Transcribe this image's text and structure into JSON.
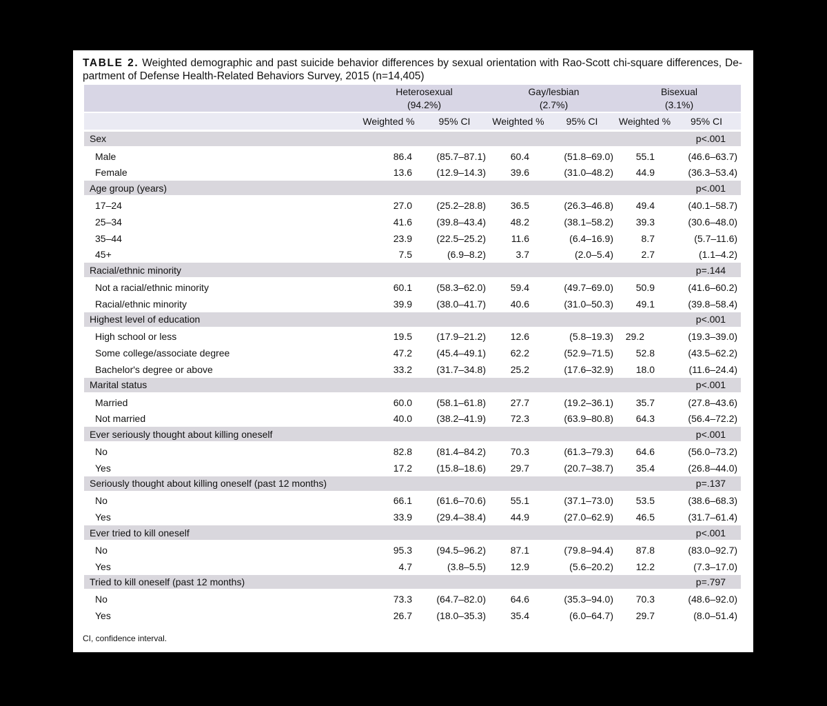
{
  "page": {
    "title_label": "TABLE 2.",
    "title_line1_rest": "Weighted demographic and past suicide behavior differences by sexual orientation with Rao-Scott chi-square differences, De-",
    "title_line2": "partment of Defense Health-Related Behaviors Survey, 2015 (n=14,405)",
    "footnote": "CI, confidence interval."
  },
  "table": {
    "groups": [
      {
        "name": "Heterosexual",
        "pct": "(94.2%)"
      },
      {
        "name": "Gay/lesbian",
        "pct": "(2.7%)"
      },
      {
        "name": "Bisexual",
        "pct": "(3.1%)"
      }
    ],
    "subheaders": [
      "Weighted %",
      "95% CI",
      "Weighted %",
      "95% CI",
      "Weighted %",
      "95% CI"
    ],
    "sections": [
      {
        "label": "Sex",
        "p": "p<.001",
        "rows": [
          {
            "label": "Male",
            "values": [
              "86.4",
              "(85.7–87.1)",
              "60.4",
              "(51.8–69.0)",
              "55.1",
              "(46.6–63.7)"
            ]
          },
          {
            "label": "Female",
            "values": [
              "13.6",
              "(12.9–14.3)",
              "39.6",
              "(31.0–48.2)",
              "44.9",
              "(36.3–53.4)"
            ]
          }
        ]
      },
      {
        "label": "Age group (years)",
        "p": "p<.001",
        "rows": [
          {
            "label": "17–24",
            "values": [
              "27.0",
              "(25.2–28.8)",
              "36.5",
              "(26.3–46.8)",
              "49.4",
              "(40.1–58.7)"
            ]
          },
          {
            "label": "25–34",
            "values": [
              "41.6",
              "(39.8–43.4)",
              "48.2",
              "(38.1–58.2)",
              "39.3",
              "(30.6–48.0)"
            ]
          },
          {
            "label": "35–44",
            "values": [
              "23.9",
              "(22.5–25.2)",
              "11.6",
              "(6.4–16.9)",
              "8.7",
              "(5.7–11.6)"
            ]
          },
          {
            "label": "45+",
            "values": [
              "7.5",
              "(6.9–8.2)",
              "3.7",
              "(2.0–5.4)",
              "2.7",
              "(1.1–4.2)"
            ]
          }
        ]
      },
      {
        "label": "Racial/ethnic minority",
        "p": "p=.144",
        "rows": [
          {
            "label": "Not a racial/ethnic minority",
            "values": [
              "60.1",
              "(58.3–62.0)",
              "59.4",
              "(49.7–69.0)",
              "50.9",
              "(41.6–60.2)"
            ]
          },
          {
            "label": "Racial/ethnic minority",
            "values": [
              "39.9",
              "(38.0–41.7)",
              "40.6",
              "(31.0–50.3)",
              "49.1",
              "(39.8–58.4)"
            ]
          }
        ]
      },
      {
        "label": "Highest level of education",
        "p": "p<.001",
        "rows": [
          {
            "label": "High school or less",
            "nudge6": true,
            "values": [
              "19.5",
              "(17.9–21.2)",
              "12.6",
              "(5.8–19.3)",
              "29.2",
              "(19.3–39.0)"
            ]
          },
          {
            "label": "Some college/associate degree",
            "values": [
              "47.2",
              "(45.4–49.1)",
              "62.2",
              "(52.9–71.5)",
              "52.8",
              "(43.5–62.2)"
            ]
          },
          {
            "label": "Bachelor's degree or above",
            "values": [
              "33.2",
              "(31.7–34.8)",
              "25.2",
              "(17.6–32.9)",
              "18.0",
              "(11.6–24.4)"
            ]
          }
        ]
      },
      {
        "label": "Marital status",
        "p": "p<.001",
        "rows": [
          {
            "label": "Married",
            "values": [
              "60.0",
              "(58.1–61.8)",
              "27.7",
              "(19.2–36.1)",
              "35.7",
              "(27.8–43.6)"
            ]
          },
          {
            "label": "Not married",
            "values": [
              "40.0",
              "(38.2–41.9)",
              "72.3",
              "(63.9–80.8)",
              "64.3",
              "(56.4–72.2)"
            ]
          }
        ]
      },
      {
        "label": "Ever seriously thought about killing oneself",
        "p": "p<.001",
        "rows": [
          {
            "label": "No",
            "values": [
              "82.8",
              "(81.4–84.2)",
              "70.3",
              "(61.3–79.3)",
              "64.6",
              "(56.0–73.2)"
            ]
          },
          {
            "label": "Yes",
            "values": [
              "17.2",
              "(15.8–18.6)",
              "29.7",
              "(20.7–38.7)",
              "35.4",
              "(26.8–44.0)"
            ]
          }
        ]
      },
      {
        "label": "Seriously thought about killing oneself (past 12 months)",
        "p": "p=.137",
        "rows": [
          {
            "label": "No",
            "values": [
              "66.1",
              "(61.6–70.6)",
              "55.1",
              "(37.1–73.0)",
              "53.5",
              "(38.6–68.3)"
            ]
          },
          {
            "label": "Yes",
            "values": [
              "33.9",
              "(29.4–38.4)",
              "44.9",
              "(27.0–62.9)",
              "46.5",
              "(31.7–61.4)"
            ]
          }
        ]
      },
      {
        "label": "Ever tried to kill oneself",
        "p": "p<.001",
        "rows": [
          {
            "label": "No",
            "values": [
              "95.3",
              "(94.5–96.2)",
              "87.1",
              "(79.8–94.4)",
              "87.8",
              "(83.0–92.7)"
            ]
          },
          {
            "label": "Yes",
            "values": [
              "4.7",
              "(3.8–5.5)",
              "12.9",
              "(5.6–20.2)",
              "12.2",
              "(7.3–17.0)"
            ]
          }
        ]
      },
      {
        "label": "Tried to kill oneself (past 12 months)",
        "p": "p=.797",
        "rows": [
          {
            "label": "No",
            "values": [
              "73.3",
              "(64.7–82.0)",
              "64.6",
              "(35.3–94.0)",
              "70.3",
              "(48.6–92.0)"
            ]
          },
          {
            "label": "Yes",
            "values": [
              "26.7",
              "(18.0–35.3)",
              "35.4",
              "(6.0–64.7)",
              "29.7",
              "(8.0–51.4)"
            ]
          }
        ]
      }
    ]
  }
}
